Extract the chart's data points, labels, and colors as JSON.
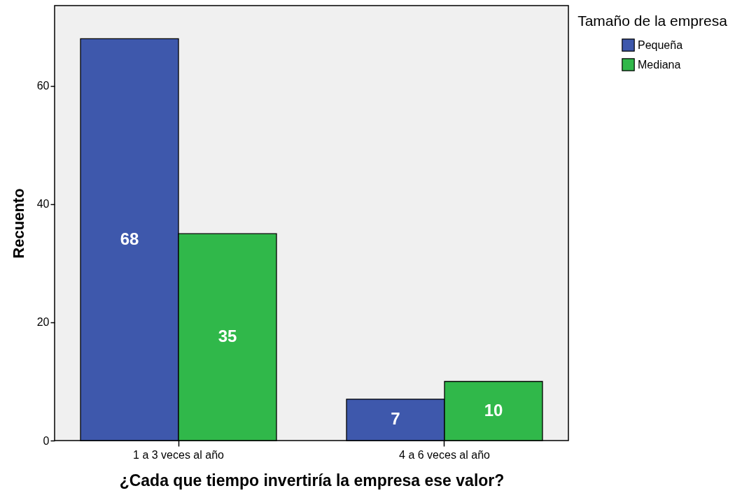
{
  "chart_data": {
    "type": "bar",
    "xlabel": "¿Cada que tiempo invertiría la empresa ese valor?",
    "ylabel": "Recuento",
    "legend_title": "Tamaño de la empresa",
    "categories": [
      "1 a 3 veces al año",
      "4 a 6 veces al año"
    ],
    "series": [
      {
        "name": "Pequeña",
        "color": "#3e58ac",
        "values": [
          68,
          7
        ]
      },
      {
        "name": "Mediana",
        "color": "#30b84a",
        "values": [
          35,
          10
        ]
      }
    ],
    "ylim": [
      0,
      73.6
    ],
    "yticks": [
      0,
      20,
      40,
      60
    ],
    "data_labels": true,
    "grid": false,
    "legend": "top right"
  }
}
